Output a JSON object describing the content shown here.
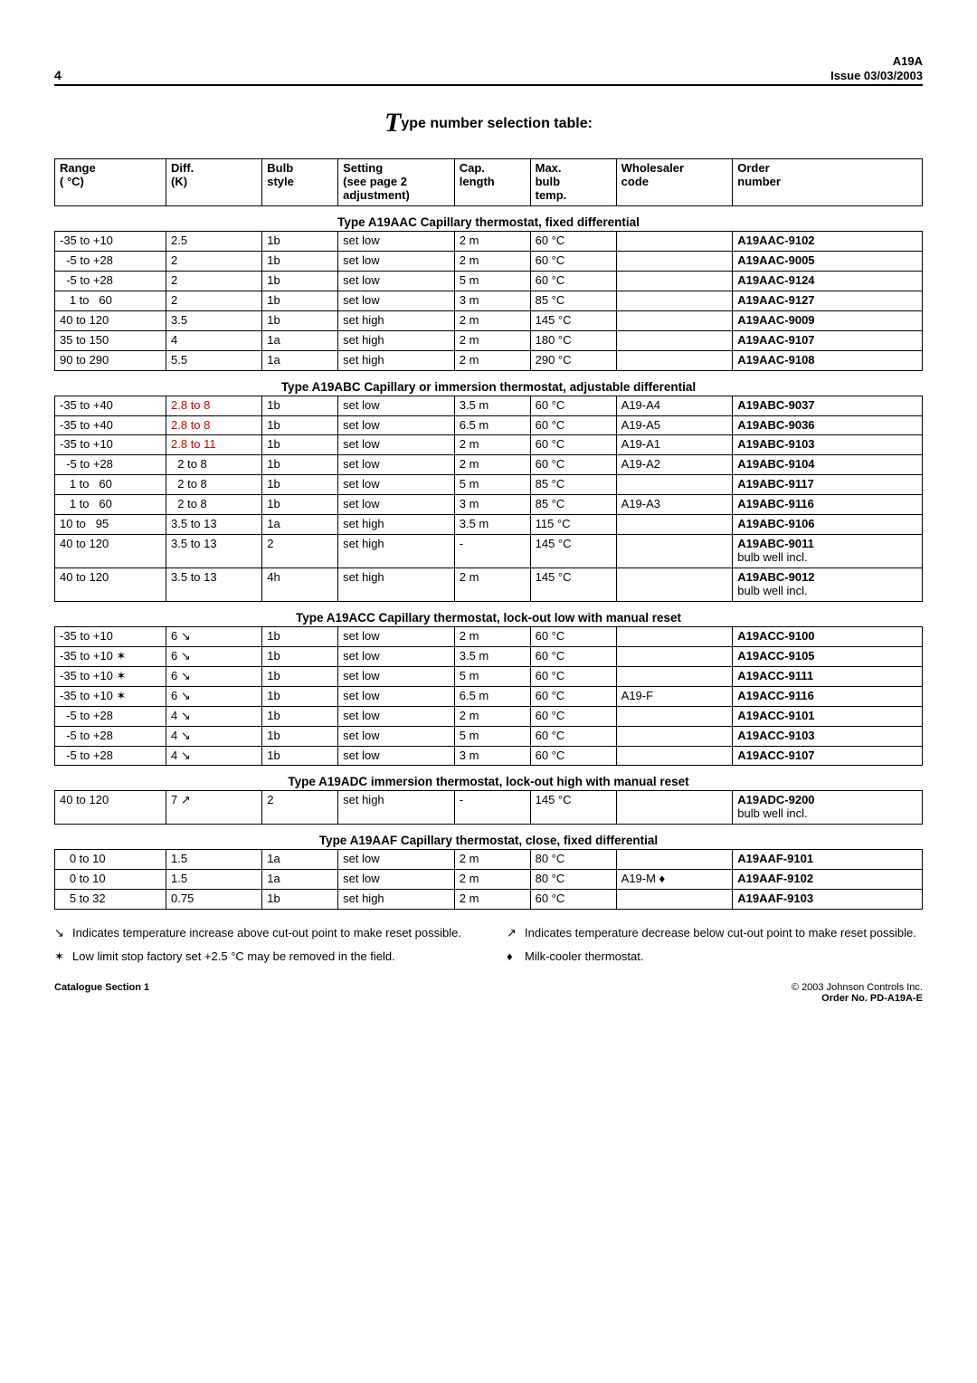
{
  "header": {
    "page": "4",
    "product": "A19A",
    "issue": "Issue 03/03/2003"
  },
  "title": {
    "big": "T",
    "rest": "ype number selection table:"
  },
  "columns": [
    {
      "label": "Range\n( °C)"
    },
    {
      "label": "Diff.\n(K)"
    },
    {
      "label": "Bulb\nstyle"
    },
    {
      "label": "Setting\n(see page 2\nadjustment)"
    },
    {
      "label": "Cap.\nlength"
    },
    {
      "label": "Max.\nbulb\ntemp."
    },
    {
      "label": "Wholesaler\ncode"
    },
    {
      "label": "Order\nnumber"
    }
  ],
  "col_widths": [
    "88",
    "76",
    "60",
    "92",
    "60",
    "68",
    "92",
    "150"
  ],
  "sections": [
    {
      "title": "Type A19AAC Capillary thermostat, fixed differential",
      "rows": [
        [
          "-35 to +10",
          "2.5",
          "1b",
          "set low",
          "2 m",
          "60 °C",
          "",
          "A19AAC-9102"
        ],
        [
          "  -5 to +28",
          "2",
          "1b",
          "set low",
          "2 m",
          "60 °C",
          "",
          "A19AAC-9005"
        ],
        [
          "  -5 to +28",
          "2",
          "1b",
          "set low",
          "5 m",
          "60 °C",
          "",
          "A19AAC-9124"
        ],
        [
          "   1 to   60",
          "2",
          "1b",
          "set low",
          "3 m",
          "85 °C",
          "",
          "A19AAC-9127"
        ],
        [
          " 40 to 120",
          "3.5",
          "1b",
          "set high",
          "2 m",
          "145 °C",
          "",
          "A19AAC-9009"
        ],
        [
          " 35 to 150",
          "4",
          "1a",
          "set high",
          "2 m",
          "180 °C",
          "",
          "A19AAC-9107"
        ],
        [
          " 90 to 290",
          "5.5",
          "1a",
          "set high",
          "2 m",
          "290 °C",
          "",
          "A19AAC-9108"
        ]
      ]
    },
    {
      "title": "Type A19ABC Capillary or immersion thermostat, adjustable differential",
      "rows": [
        [
          "-35 to +40",
          "2.8 to 8",
          "1b",
          "set low",
          "3.5 m",
          "60 °C",
          "A19-A4",
          "A19ABC-9037"
        ],
        [
          "-35 to +40",
          "2.8 to 8",
          "1b",
          "set low",
          "6.5 m",
          "60 °C",
          "A19-A5",
          "A19ABC-9036"
        ],
        [
          "-35 to +10",
          "2.8 to 11",
          "1b",
          "set low",
          "2 m",
          "60 °C",
          "A19-A1",
          "A19ABC-9103"
        ],
        [
          "  -5 to +28",
          "  2 to 8",
          "1b",
          "set low",
          "2 m",
          "60 °C",
          "A19-A2",
          "A19ABC-9104"
        ],
        [
          "   1 to   60",
          "  2 to 8",
          "1b",
          "set low",
          "5 m",
          "85 °C",
          "",
          "A19ABC-9117"
        ],
        [
          "   1 to   60",
          "  2 to 8",
          "1b",
          "set low",
          "3 m",
          "85 °C",
          "A19-A3",
          "A19ABC-9116"
        ],
        [
          " 10 to   95",
          "3.5 to 13",
          "1a",
          "set high",
          "3.5 m",
          "115 °C",
          "",
          "A19ABC-9106"
        ],
        [
          " 40 to 120",
          "3.5 to 13",
          "2",
          "set high",
          "-",
          "145 °C",
          "",
          "A19ABC-9011\nbulb well incl."
        ],
        [
          " 40 to 120",
          "3.5 to 13",
          "4h",
          "set high",
          "2 m",
          "145 °C",
          "",
          "A19ABC-9012\nbulb well incl."
        ]
      ],
      "diff_red": [
        0,
        1,
        2
      ]
    },
    {
      "title": "Type A19ACC Capillary thermostat, lock-out  low with manual reset",
      "rows": [
        [
          "-35 to +10",
          "6 ↘",
          "1b",
          "set low",
          "2 m",
          "60 °C",
          "",
          "A19ACC-9100"
        ],
        [
          "-35 to +10 ✶",
          "6 ↘",
          "1b",
          "set low",
          "3.5 m",
          "60 °C",
          "",
          "A19ACC-9105"
        ],
        [
          "-35 to +10 ✶",
          "6 ↘",
          "1b",
          "set low",
          "5 m",
          "60 °C",
          "",
          "A19ACC-9111"
        ],
        [
          "-35 to +10 ✶",
          "6 ↘",
          "1b",
          "set low",
          "6.5 m",
          "60 °C",
          "A19-F",
          "A19ACC-9116"
        ],
        [
          "  -5 to +28",
          "4 ↘",
          "1b",
          "set low",
          "2 m",
          "60 °C",
          "",
          "A19ACC-9101"
        ],
        [
          "  -5 to +28",
          "4 ↘",
          "1b",
          "set low",
          "5 m",
          "60 °C",
          "",
          "A19ACC-9103"
        ],
        [
          "  -5 to +28",
          "4 ↘",
          "1b",
          "set low",
          "3 m",
          "60 °C",
          "",
          "A19ACC-9107"
        ]
      ]
    },
    {
      "title": "Type A19ADC immersion thermostat, lock-out high with manual reset",
      "rows": [
        [
          " 40 to 120",
          "7 ↗",
          "2",
          "set high",
          "-",
          "145 °C",
          "",
          "A19ADC-9200\nbulb well incl."
        ]
      ]
    },
    {
      "title": "Type A19AAF Capillary thermostat, close, fixed differential",
      "rows": [
        [
          "   0 to 10",
          "1.5",
          "1a",
          "set low",
          "2 m",
          "80 °C",
          "",
          "A19AAF-9101"
        ],
        [
          "   0 to 10",
          "1.5",
          "1a",
          "set low",
          "2 m",
          "80 °C",
          "A19-M ♦",
          "A19AAF-9102"
        ],
        [
          "   5 to 32",
          "0.75",
          "1b",
          "set high",
          "2 m",
          "60 °C",
          "",
          "A19AAF-9103"
        ]
      ]
    }
  ],
  "notes": {
    "left": [
      {
        "sym": "↘",
        "text": "Indicates temperature increase above cut-out point to make reset possible."
      },
      {
        "sym": "✶",
        "text": "Low limit stop factory set +2.5 °C may be removed in the field."
      }
    ],
    "right": [
      {
        "sym": "↗",
        "text": "Indicates temperature decrease below cut-out point to make reset possible."
      },
      {
        "sym": "♦",
        "text": "Milk-cooler thermostat."
      }
    ]
  },
  "footer": {
    "left": "Catalogue Section 1",
    "right1": "© 2003 Johnson Controls Inc.",
    "right2": "Order No. PD-A19A-E"
  }
}
